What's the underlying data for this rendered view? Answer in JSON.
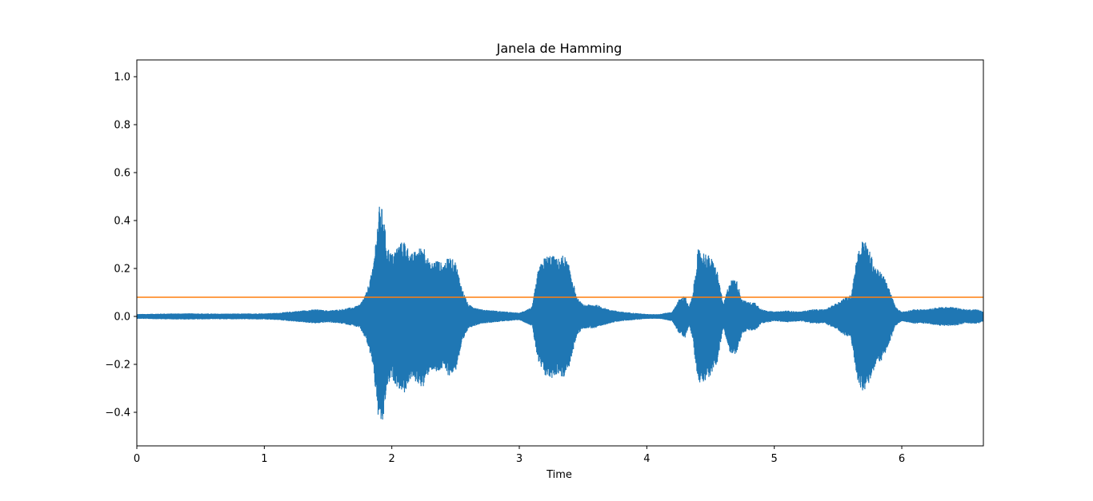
{
  "chart_data": {
    "type": "line",
    "title": "Janela de Hamming",
    "xlabel": "Time",
    "ylabel": "",
    "xlim": [
      0,
      6.64
    ],
    "ylim": [
      -0.54,
      1.07
    ],
    "grid": false,
    "legend": "none",
    "x_ticks": [
      {
        "value": 0,
        "label": "0"
      },
      {
        "value": 1,
        "label": "1"
      },
      {
        "value": 2,
        "label": "2"
      },
      {
        "value": 3,
        "label": "3"
      },
      {
        "value": 4,
        "label": "4"
      },
      {
        "value": 5,
        "label": "5"
      },
      {
        "value": 6,
        "label": "6"
      }
    ],
    "y_ticks": [
      {
        "value": -0.4,
        "label": "−0.4"
      },
      {
        "value": -0.2,
        "label": "−0.2"
      },
      {
        "value": 0.0,
        "label": "0.0"
      },
      {
        "value": 0.2,
        "label": "0.2"
      },
      {
        "value": 0.4,
        "label": "0.4"
      },
      {
        "value": 0.6,
        "label": "0.6"
      },
      {
        "value": 0.8,
        "label": "0.8"
      },
      {
        "value": 1.0,
        "label": "1.0"
      }
    ],
    "series": [
      {
        "kind": "waveform-envelope",
        "color": "#1f77b4",
        "x": [
          0.0,
          0.2,
          0.4,
          0.6,
          0.8,
          1.0,
          1.1,
          1.2,
          1.3,
          1.4,
          1.5,
          1.6,
          1.7,
          1.75,
          1.8,
          1.85,
          1.88,
          1.9,
          1.93,
          1.96,
          2.0,
          2.05,
          2.1,
          2.15,
          2.2,
          2.25,
          2.3,
          2.35,
          2.4,
          2.45,
          2.5,
          2.55,
          2.6,
          2.7,
          2.8,
          2.9,
          3.0,
          3.1,
          3.15,
          3.2,
          3.25,
          3.3,
          3.35,
          3.4,
          3.45,
          3.5,
          3.6,
          3.7,
          3.8,
          3.9,
          4.0,
          4.1,
          4.2,
          4.25,
          4.3,
          4.33,
          4.36,
          4.4,
          4.45,
          4.5,
          4.55,
          4.6,
          4.65,
          4.7,
          4.75,
          4.8,
          4.85,
          4.9,
          5.0,
          5.1,
          5.2,
          5.3,
          5.4,
          5.5,
          5.55,
          5.6,
          5.65,
          5.7,
          5.75,
          5.8,
          5.85,
          5.9,
          5.95,
          6.0,
          6.1,
          6.2,
          6.3,
          6.4,
          6.5,
          6.6,
          6.64
        ],
        "upper": [
          0.01,
          0.012,
          0.013,
          0.012,
          0.012,
          0.013,
          0.015,
          0.02,
          0.025,
          0.03,
          0.025,
          0.03,
          0.04,
          0.05,
          0.1,
          0.2,
          0.35,
          0.46,
          0.45,
          0.3,
          0.26,
          0.3,
          0.32,
          0.26,
          0.28,
          0.3,
          0.22,
          0.24,
          0.22,
          0.25,
          0.23,
          0.12,
          0.05,
          0.03,
          0.025,
          0.02,
          0.015,
          0.04,
          0.2,
          0.25,
          0.26,
          0.24,
          0.26,
          0.2,
          0.08,
          0.05,
          0.05,
          0.03,
          0.02,
          0.015,
          0.01,
          0.01,
          0.02,
          0.07,
          0.09,
          0.04,
          0.09,
          0.28,
          0.27,
          0.25,
          0.2,
          0.05,
          0.15,
          0.16,
          0.07,
          0.06,
          0.06,
          0.03,
          0.02,
          0.025,
          0.02,
          0.03,
          0.03,
          0.06,
          0.08,
          0.09,
          0.26,
          0.33,
          0.27,
          0.2,
          0.18,
          0.12,
          0.04,
          0.02,
          0.03,
          0.03,
          0.04,
          0.04,
          0.03,
          0.03,
          0.02
        ],
        "lower": [
          -0.01,
          -0.012,
          -0.013,
          -0.012,
          -0.012,
          -0.013,
          -0.015,
          -0.02,
          -0.025,
          -0.03,
          -0.025,
          -0.03,
          -0.04,
          -0.05,
          -0.1,
          -0.2,
          -0.35,
          -0.46,
          -0.45,
          -0.3,
          -0.26,
          -0.3,
          -0.32,
          -0.26,
          -0.28,
          -0.3,
          -0.22,
          -0.24,
          -0.22,
          -0.25,
          -0.23,
          -0.12,
          -0.05,
          -0.03,
          -0.025,
          -0.02,
          -0.015,
          -0.04,
          -0.2,
          -0.25,
          -0.26,
          -0.24,
          -0.26,
          -0.2,
          -0.08,
          -0.05,
          -0.05,
          -0.03,
          -0.02,
          -0.015,
          -0.01,
          -0.01,
          -0.02,
          -0.07,
          -0.09,
          -0.04,
          -0.09,
          -0.28,
          -0.27,
          -0.25,
          -0.2,
          -0.05,
          -0.15,
          -0.16,
          -0.07,
          -0.06,
          -0.06,
          -0.03,
          -0.02,
          -0.025,
          -0.02,
          -0.03,
          -0.03,
          -0.06,
          -0.08,
          -0.09,
          -0.26,
          -0.33,
          -0.27,
          -0.2,
          -0.18,
          -0.12,
          -0.04,
          -0.02,
          -0.03,
          -0.03,
          -0.04,
          -0.04,
          -0.03,
          -0.03,
          -0.02
        ]
      },
      {
        "kind": "hline",
        "color": "#ff7f0e",
        "y": 0.08
      }
    ]
  }
}
